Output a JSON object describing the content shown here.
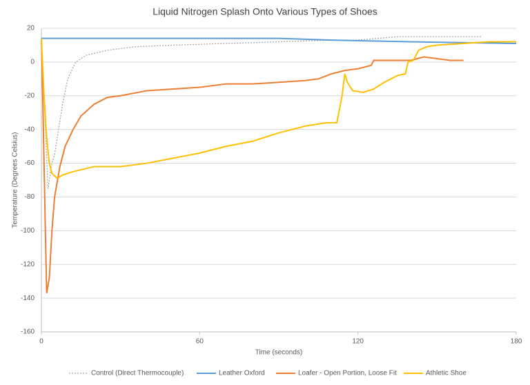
{
  "chart_data": {
    "type": "line",
    "title": "Liquid Nitrogen Splash Onto Various Types of Shoes",
    "x_label": "Time (seconds)",
    "y_label": "Temperature (Degrees Celsius)",
    "xlim": [
      0,
      180
    ],
    "xticks": [
      0,
      60,
      120,
      180
    ],
    "ylim": [
      -160,
      20
    ],
    "yticks": [
      -160,
      -140,
      -120,
      -100,
      -80,
      -60,
      -40,
      -20,
      0,
      20
    ],
    "grid": true,
    "legend": "bottom",
    "series": [
      {
        "name": "Control (Direct Thermocouple)",
        "color": "#a5a5a5",
        "dashed": true,
        "x": [
          0,
          1,
          2.5,
          4,
          5,
          6,
          8,
          10,
          13,
          17,
          25,
          35,
          50,
          70,
          90,
          110,
          120,
          135,
          140,
          167
        ],
        "values": [
          14,
          -20,
          -75,
          -60,
          -55,
          -45,
          -25,
          -10,
          0,
          4,
          7,
          9,
          10,
          11,
          12,
          13,
          13,
          15,
          15,
          15
        ]
      },
      {
        "name": "Leather Oxford",
        "color": "#5b9bd5",
        "dashed": false,
        "x": [
          0,
          75,
          90,
          110,
          140,
          180
        ],
        "values": [
          14,
          14,
          14,
          13,
          12,
          11
        ]
      },
      {
        "name": "Loafer - Open Portion, Loose Fit",
        "color": "#ed7d31",
        "dashed": false,
        "x": [
          0,
          0.5,
          1.5,
          2,
          3,
          4,
          5,
          7,
          9,
          12,
          15,
          20,
          25,
          30,
          40,
          50,
          60,
          70,
          80,
          90,
          100,
          105,
          110,
          115,
          120,
          125,
          126,
          130,
          140,
          145,
          150,
          155,
          160
        ],
        "values": [
          14,
          -20,
          -100,
          -137,
          -128,
          -100,
          -80,
          -62,
          -50,
          -40,
          -32,
          -25,
          -21,
          -20,
          -17,
          -16,
          -15,
          -13,
          -13,
          -12,
          -11,
          -10,
          -7,
          -5,
          -4,
          -2,
          1,
          1,
          1,
          3,
          2,
          1,
          1
        ]
      },
      {
        "name": "Athletic Shoe",
        "color": "#ffc000",
        "dashed": false,
        "x": [
          0,
          1,
          2,
          3,
          4,
          6,
          8,
          12,
          20,
          30,
          40,
          50,
          60,
          70,
          80,
          90,
          100,
          108,
          112,
          114,
          115,
          116,
          118,
          122,
          126,
          130,
          135,
          138,
          139,
          141,
          143,
          146,
          150,
          160,
          170,
          180
        ],
        "values": [
          14,
          -20,
          -45,
          -60,
          -66,
          -69,
          -67,
          -65,
          -62,
          -62,
          -60,
          -57,
          -54,
          -50,
          -47,
          -42,
          -38,
          -36,
          -36,
          -20,
          -7,
          -12,
          -17,
          -18,
          -16,
          -12,
          -8,
          -7,
          0,
          1,
          7,
          9,
          10,
          11,
          12,
          12
        ]
      }
    ]
  }
}
